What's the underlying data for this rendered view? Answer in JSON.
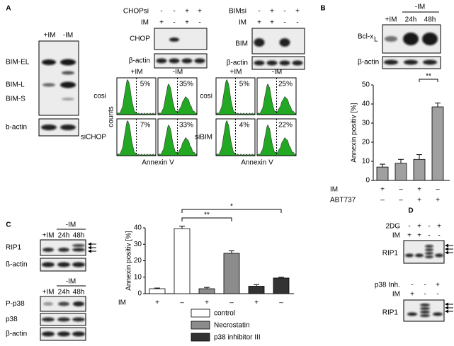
{
  "panel_labels": [
    "A",
    "B",
    "C",
    "D"
  ],
  "panel_a": {
    "bim_blot": {
      "lanes": [
        "+IM",
        "-IM"
      ],
      "rows": [
        "BIM-EL",
        "BIM-L",
        "BIM-S",
        "b-actin"
      ]
    },
    "chop_blot": {
      "conditions": [
        {
          "label": "CHOPsi",
          "signs": [
            "-",
            "-",
            "+",
            "+"
          ]
        },
        {
          "label": "IM",
          "signs": [
            "+",
            "-",
            "+",
            "-"
          ]
        }
      ],
      "rows": [
        "CHOP",
        "β-actin"
      ]
    },
    "bim_si_blot": {
      "conditions": [
        {
          "label": "BIMsi",
          "signs": [
            "-",
            "+",
            "-",
            "+"
          ]
        },
        {
          "label": "IM",
          "signs": [
            "+",
            "+",
            "-",
            "-"
          ]
        }
      ],
      "rows": [
        "BIM",
        "β-actin"
      ]
    },
    "chop_flow": {
      "columns": [
        "+IM",
        "-IM"
      ],
      "rows": [
        "cosi",
        "siCHOP"
      ],
      "percents": [
        [
          "5%",
          "35%"
        ],
        [
          "7%",
          "33%"
        ]
      ],
      "y_label": "counts",
      "x_label": "Annexin V"
    },
    "bim_flow": {
      "columns": [
        "+IM",
        "-IM"
      ],
      "rows": [
        "cosi",
        "siBIM"
      ],
      "percents": [
        [
          "5%",
          "25%"
        ],
        [
          "4%",
          "22%"
        ]
      ],
      "x_label": "Annexin V"
    }
  },
  "panel_b": {
    "blot": {
      "group": "-IM",
      "lanes": [
        "+IM",
        "24h",
        "48h"
      ],
      "rows": [
        {
          "main": "Bcl-x",
          "sub": "L"
        },
        "β-actin"
      ]
    },
    "conditions": [
      {
        "label": "IM",
        "signs": [
          "+",
          "–",
          "+",
          "–"
        ]
      },
      {
        "label": "ABT737",
        "signs": [
          "–",
          "–",
          "+",
          "+"
        ]
      }
    ]
  },
  "panel_c": {
    "blot_1": {
      "group": "-IM",
      "lanes": [
        "+IM",
        "24h",
        "48h"
      ],
      "rows": [
        "RIP1",
        "ß-actin"
      ]
    },
    "blot_2": {
      "group": "-IM",
      "lanes": [
        "+IM",
        "24h",
        "48h"
      ],
      "rows": [
        "P-p38",
        "p38",
        "β-actin"
      ]
    },
    "conditions": [
      {
        "label": "IM",
        "signs": [
          "+",
          "–",
          "+",
          "–",
          "+",
          "–"
        ]
      }
    ]
  },
  "panel_d": {
    "blot_1": {
      "conditions": [
        {
          "label": "2DG",
          "signs": [
            "-",
            "+",
            "-",
            "+"
          ]
        },
        {
          "label": "IM",
          "signs": [
            "+",
            "+",
            "-",
            "-"
          ]
        }
      ],
      "rows": [
        "RIP1"
      ]
    },
    "blot_2": {
      "conditions": [
        {
          "label": "p38 Inh.",
          "signs": [
            "-",
            "-",
            "+"
          ]
        },
        {
          "label": "IM",
          "signs": [
            "+",
            "-",
            "-"
          ]
        }
      ],
      "rows": [
        "RIP1"
      ]
    }
  },
  "chart_data": [
    {
      "type": "bar",
      "y_label": "Annexin positiv [%]",
      "values": [
        7,
        9,
        11,
        38.5
      ],
      "errors": [
        1.5,
        2,
        2.5,
        2
      ],
      "color": "#a0a0a0",
      "ylim": [
        0,
        50
      ],
      "yticks": [
        0,
        10,
        20,
        30,
        40,
        50
      ],
      "annotations": [
        "**"
      ]
    },
    {
      "type": "bar",
      "y_label": "Annexin positiv [%]",
      "series": [
        {
          "name": "control",
          "color": "#ffffff",
          "values": [
            3,
            39.5
          ],
          "errors": [
            0.4,
            1.5
          ]
        },
        {
          "name": "Necrostatin",
          "color": "#8c8c8c",
          "values": [
            3,
            24.5
          ],
          "errors": [
            0.8,
            1.5
          ]
        },
        {
          "name": "p38 inhibitor III",
          "color": "#333333",
          "values": [
            4.5,
            9.5
          ],
          "errors": [
            1,
            0.5
          ]
        }
      ],
      "ylim": [
        0,
        40
      ],
      "yticks": [
        0,
        10,
        20,
        30,
        40
      ],
      "annotations": [
        "**",
        "*"
      ]
    }
  ]
}
